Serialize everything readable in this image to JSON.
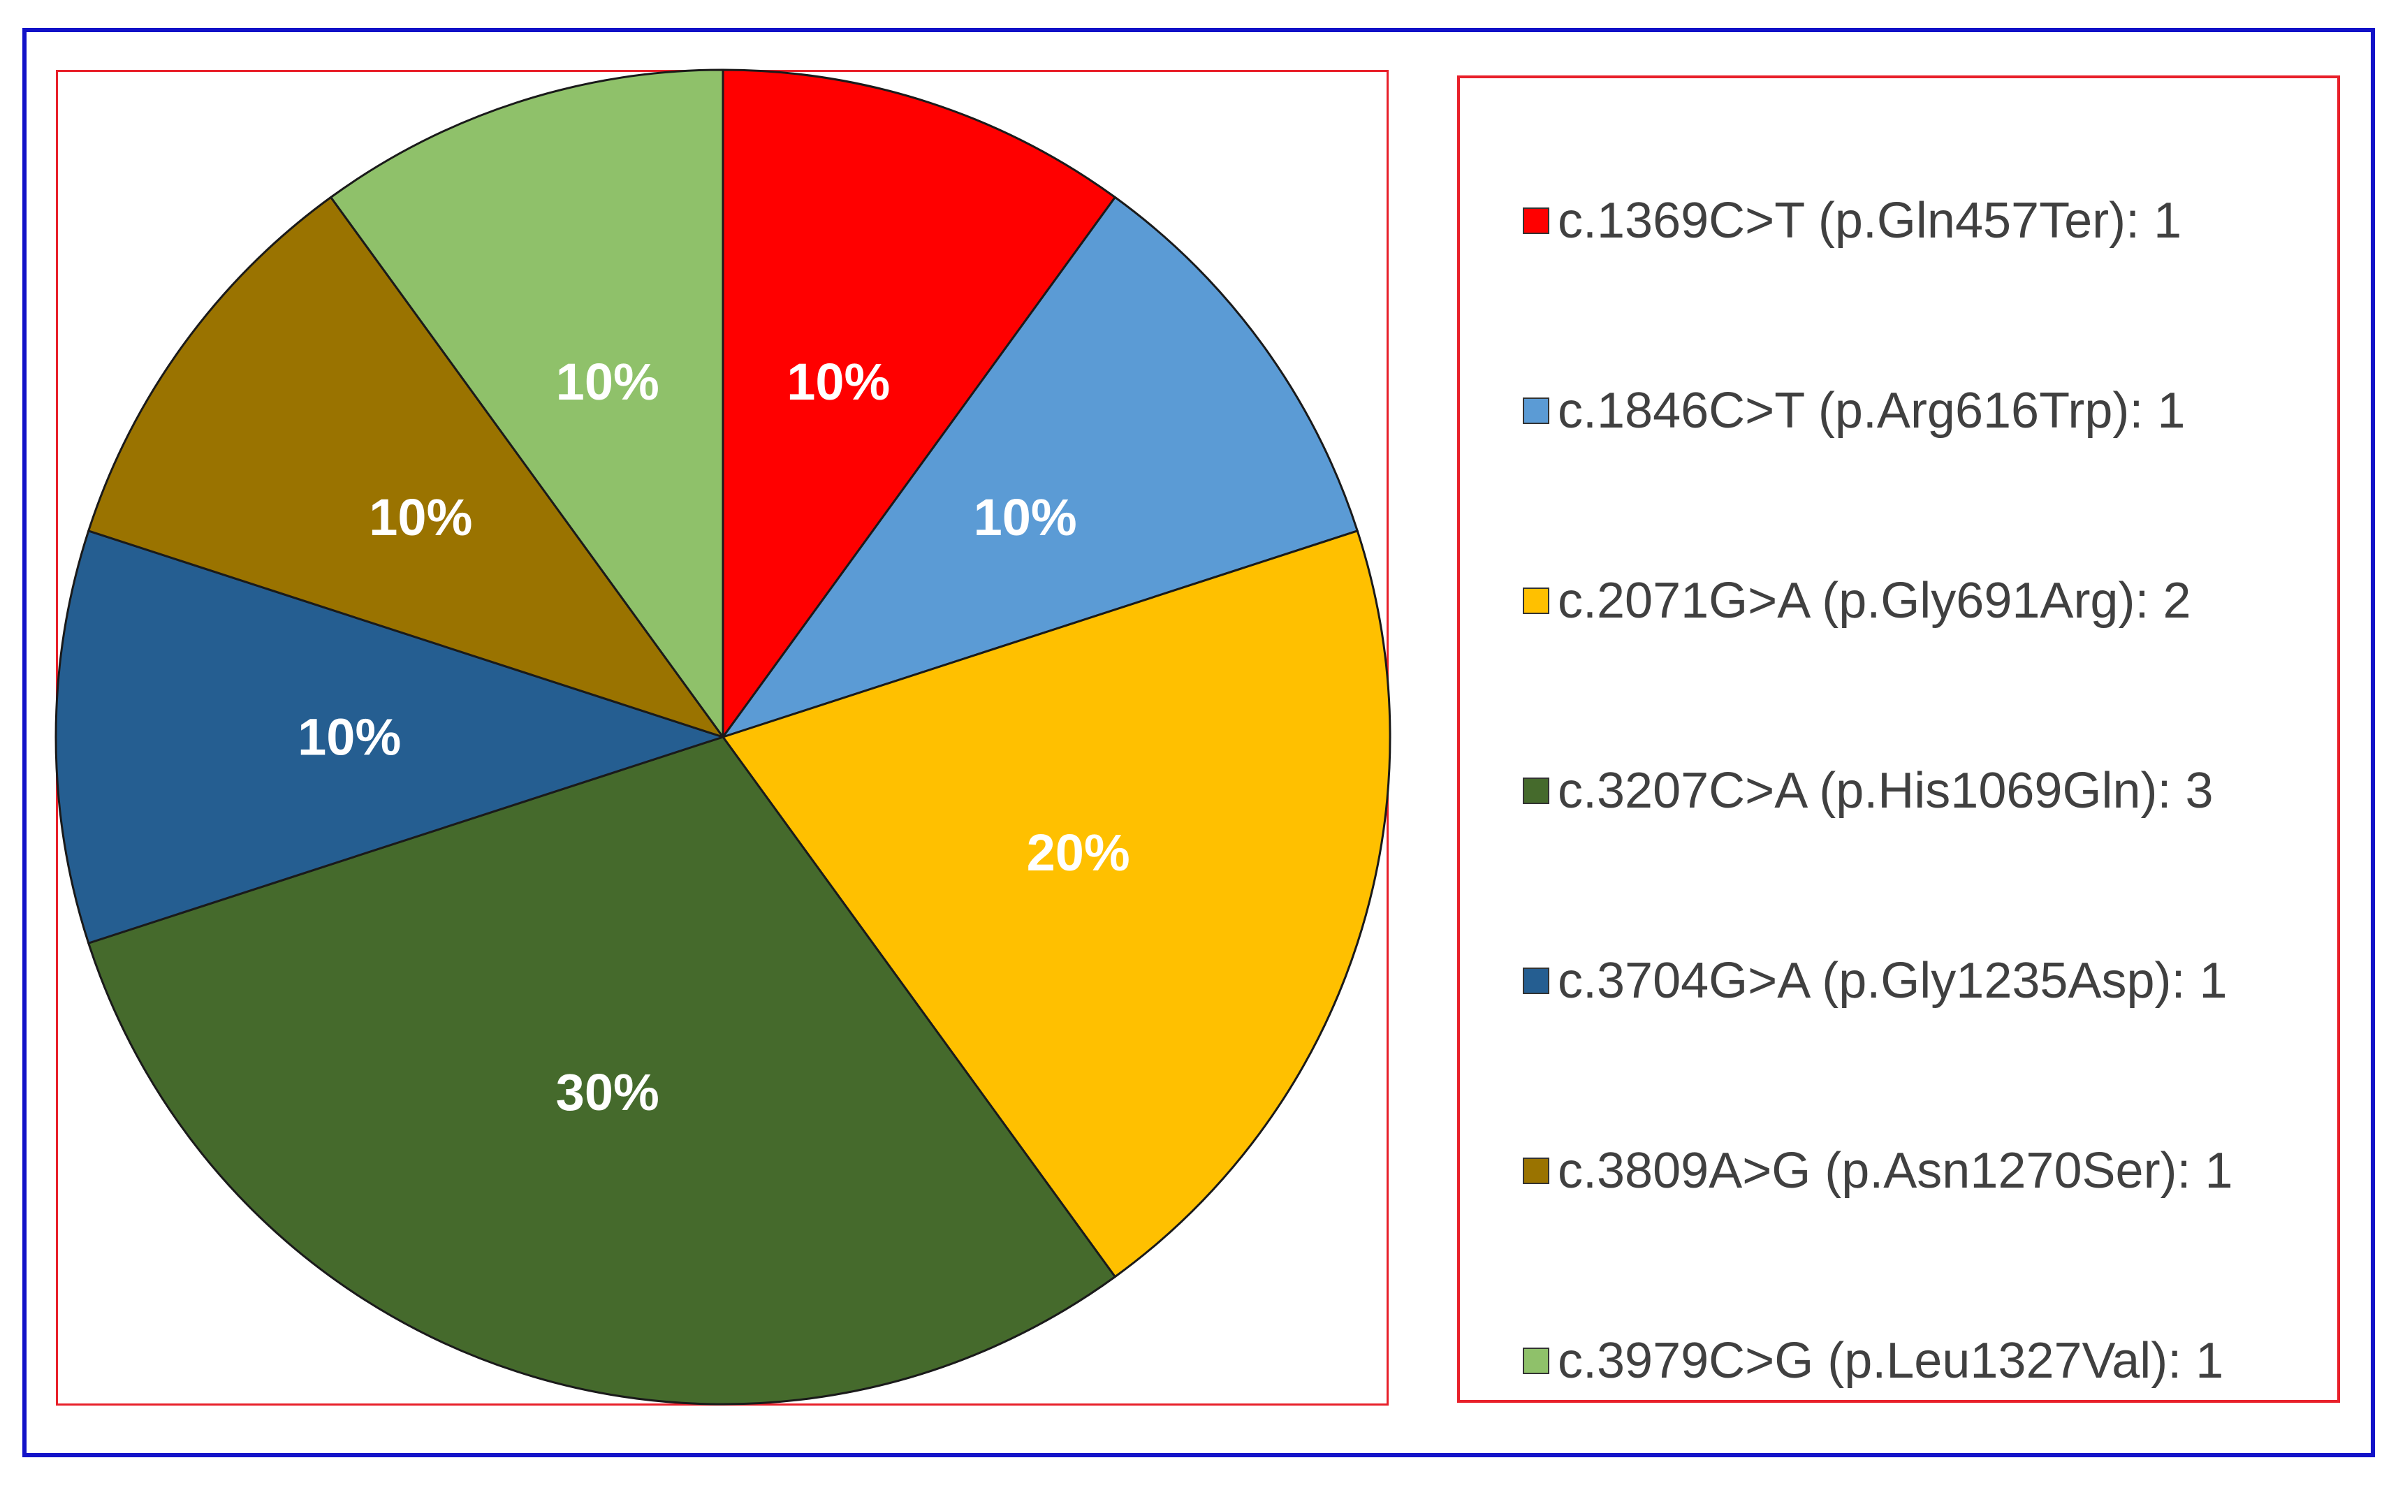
{
  "chart_data": {
    "type": "pie",
    "title": "",
    "categories": [
      "c.1369C>T (p.Gln457Ter)",
      "c.1846C>T (p.Arg616Trp)",
      "c.2071G>A (p.Gly691Arg)",
      "c.3207C>A (p.His1069Gln)",
      "c.3704G>A (p.Gly1235Asp)",
      "c.3809A>G (p.Asn1270Ser)",
      "c.3979C>G (p.Leu1327Val)"
    ],
    "values": [
      1,
      1,
      2,
      3,
      1,
      1,
      1
    ],
    "percent_labels": [
      "10%",
      "10%",
      "20%",
      "30%",
      "10%",
      "10%",
      "10%"
    ],
    "legend_labels": [
      "c.1369C>T (p.Gln457Ter): 1",
      "c.1846C>T (p.Arg616Trp): 1",
      "c.2071G>A (p.Gly691Arg): 2",
      "c.3207C>A (p.His1069Gln): 3",
      "c.3704G>A (p.Gly1235Asp): 1",
      "c.3809A>G (p.Asn1270Ser): 1",
      "c.3979C>G (p.Leu1327Val): 1"
    ],
    "colors": [
      "#ff0000",
      "#5b9bd5",
      "#ffc000",
      "#456a2c",
      "#255e91",
      "#9a7300",
      "#8fc16a"
    ],
    "legend_position": "right",
    "start_angle": "12 o'clock",
    "direction": "clockwise"
  }
}
